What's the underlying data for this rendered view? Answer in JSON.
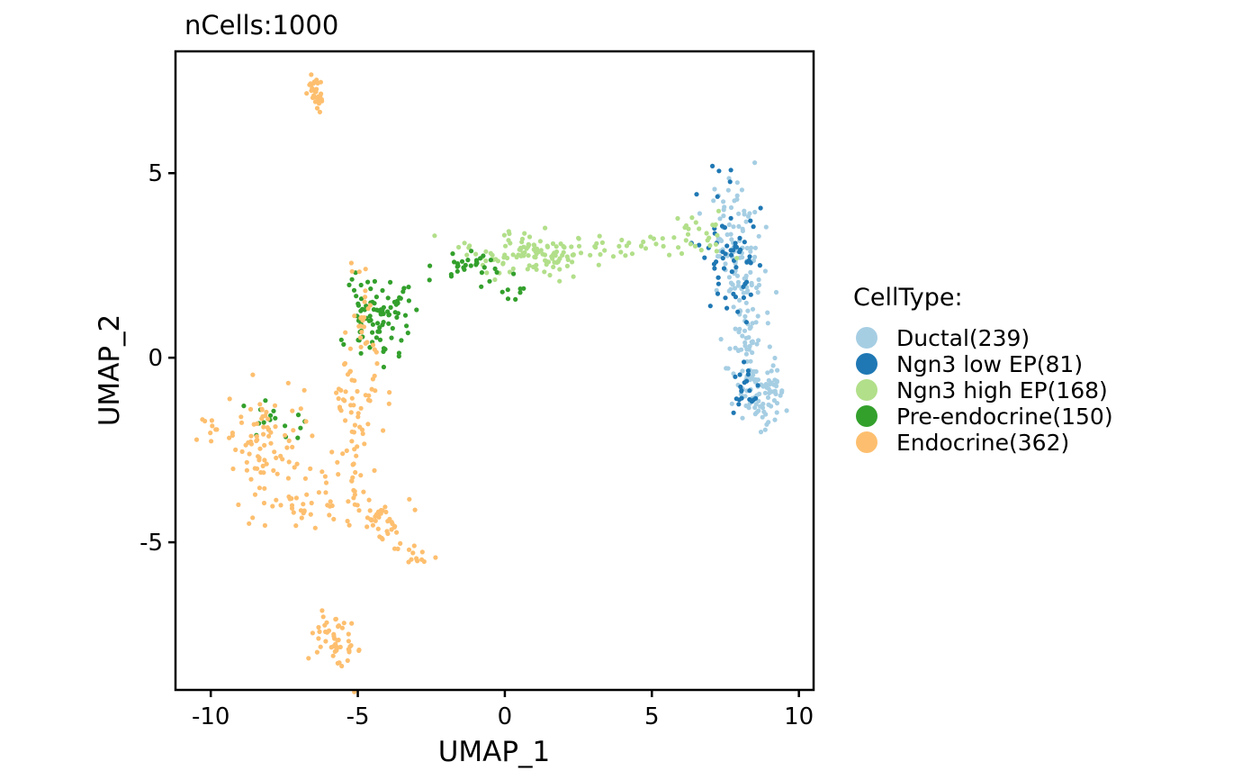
{
  "chart_data": {
    "type": "scatter",
    "title": "nCells:1000",
    "xlabel": "UMAP_1",
    "ylabel": "UMAP_2",
    "xlim": [
      -11.2,
      10.5
    ],
    "ylim": [
      -9.0,
      8.3
    ],
    "xticks": [
      -10,
      -5,
      0,
      5,
      10
    ],
    "yticks": [
      -5,
      0,
      5
    ],
    "xtick_labels": [
      "-10",
      "-5",
      "0",
      "5",
      "10"
    ],
    "ytick_labels": [
      "-5",
      "0",
      "5"
    ],
    "grid": false,
    "legend": {
      "title": "CellType:",
      "position": "right"
    },
    "series": [
      {
        "name": "Ductal(239)",
        "color": "#A6CEE3",
        "clusters": [
          {
            "cx": 7.8,
            "cy": 3.1,
            "sx": 0.45,
            "sy": 0.9,
            "n": 90
          },
          {
            "cx": 8.2,
            "cy": 1.0,
            "sx": 0.35,
            "sy": 0.6,
            "n": 60
          },
          {
            "cx": 8.7,
            "cy": -0.9,
            "sx": 0.45,
            "sy": 0.45,
            "n": 89
          }
        ]
      },
      {
        "name": "Ngn3 low EP(81)",
        "color": "#1F78B4",
        "clusters": [
          {
            "cx": 7.6,
            "cy": 2.7,
            "sx": 0.5,
            "sy": 0.9,
            "n": 60
          },
          {
            "cx": 8.1,
            "cy": -0.9,
            "sx": 0.3,
            "sy": 0.3,
            "n": 21
          }
        ]
      },
      {
        "name": "Ngn3 high EP(168)",
        "color": "#B2DF8A",
        "clusters": [
          {
            "cx": 1.0,
            "cy": 2.8,
            "sx": 1.3,
            "sy": 0.3,
            "n": 120
          },
          {
            "cx": 4.0,
            "cy": 3.0,
            "sx": 1.0,
            "sy": 0.15,
            "n": 20
          },
          {
            "cx": 6.7,
            "cy": 3.3,
            "sx": 0.5,
            "sy": 0.3,
            "n": 28
          }
        ]
      },
      {
        "name": "Pre-endocrine(150)",
        "color": "#33A02C",
        "clusters": [
          {
            "cx": -4.4,
            "cy": 1.2,
            "sx": 0.6,
            "sy": 0.6,
            "n": 95
          },
          {
            "cx": -1.2,
            "cy": 2.5,
            "sx": 0.6,
            "sy": 0.2,
            "n": 30
          },
          {
            "cx": 0.3,
            "cy": 1.8,
            "sx": 0.4,
            "sy": 0.2,
            "n": 8
          },
          {
            "cx": -8.0,
            "cy": -1.8,
            "sx": 0.7,
            "sy": 0.3,
            "n": 17
          }
        ]
      },
      {
        "name": "Endocrine(362)",
        "color": "#FDBF6F",
        "clusters": [
          {
            "cx": -6.5,
            "cy": 7.2,
            "sx": 0.12,
            "sy": 0.25,
            "n": 20
          },
          {
            "cx": -4.8,
            "cy": 1.0,
            "sx": 0.3,
            "sy": 0.6,
            "n": 30
          },
          {
            "cx": -5.0,
            "cy": -1.5,
            "sx": 0.5,
            "sy": 0.8,
            "n": 55
          },
          {
            "cx": -8.3,
            "cy": -2.5,
            "sx": 0.6,
            "sy": 0.8,
            "n": 80
          },
          {
            "cx": -6.5,
            "cy": -3.9,
            "sx": 0.9,
            "sy": 0.5,
            "n": 45
          },
          {
            "cx": -4.3,
            "cy": -4.3,
            "sx": 0.6,
            "sy": 0.4,
            "n": 45
          },
          {
            "cx": -3.0,
            "cy": -5.4,
            "sx": 0.2,
            "sy": 0.15,
            "n": 12
          },
          {
            "cx": -5.8,
            "cy": -7.6,
            "sx": 0.4,
            "sy": 0.5,
            "n": 50
          },
          {
            "cx": -10.0,
            "cy": -1.9,
            "sx": 0.2,
            "sy": 0.2,
            "n": 10
          },
          {
            "cx": -6.3,
            "cy": 6.9,
            "sx": 0.08,
            "sy": 0.2,
            "n": 15
          }
        ]
      }
    ]
  }
}
